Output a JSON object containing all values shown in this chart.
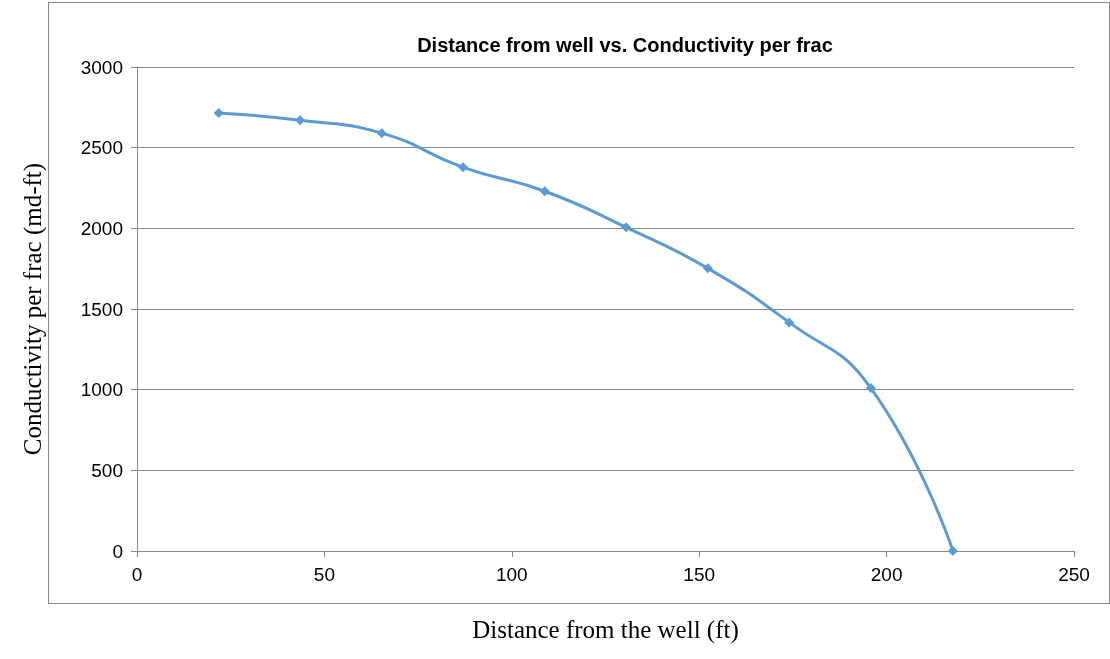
{
  "chart_data": {
    "type": "line",
    "title": "Distance from well vs. Conductivity per frac",
    "xlabel": "Distance from the well (ft)",
    "ylabel": "Conductivity per frac (md-ft)",
    "x": [
      21.8,
      43.5,
      65.3,
      87,
      108.8,
      130.5,
      152.3,
      174,
      195.8,
      217.7
    ],
    "series": [
      {
        "color": "#5b9bd5",
        "values": [
          2715,
          2670,
          2590,
          2378,
          2230,
          2006,
          1752,
          1417,
          1010,
          0
        ]
      }
    ],
    "xlim": [
      0,
      250
    ],
    "xticks": [
      0,
      50,
      100,
      150,
      200,
      250
    ],
    "ylim": [
      0,
      3000
    ],
    "yticks": [
      0,
      500,
      1000,
      1500,
      2000,
      2500,
      3000
    ],
    "grid": "y",
    "marker": "diamond",
    "line_style": "solid"
  }
}
